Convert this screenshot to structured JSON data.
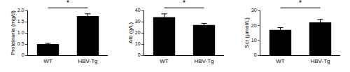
{
  "chart_data": [
    {
      "type": "bar",
      "y_label": "Proteinuria (mg/d)",
      "categories": [
        "WT",
        "HBV-Tg"
      ],
      "values": [
        0.5,
        1.75
      ],
      "errors": [
        0.03,
        0.1
      ],
      "color": "#000000",
      "ylim": [
        0,
        2
      ],
      "yticks": [
        0,
        0.5,
        {
          "value": 1,
          "label": "1.0"
        },
        1.5,
        {
          "value": 2,
          "label": "2.0"
        }
      ],
      "grid": false,
      "annotations": [
        {
          "text": "*",
          "between": [
            "WT",
            "HBV-Tg"
          ]
        }
      ]
    },
    {
      "type": "bar",
      "y_label": "Alb (g/L)",
      "categories": [
        "WT",
        "HBV-Tg"
      ],
      "values": [
        34,
        27
      ],
      "errors": [
        3,
        1.5
      ],
      "color": "#000000",
      "ylim": [
        0,
        40
      ],
      "yticks": [
        0,
        10,
        20,
        30,
        40
      ],
      "grid": false,
      "annotations": [
        {
          "text": "*",
          "between": [
            "WT",
            "HBV-Tg"
          ]
        }
      ]
    },
    {
      "type": "bar",
      "y_label": "Scr (μmol/L)",
      "categories": [
        "WT",
        "HBV-Tg"
      ],
      "values": [
        17,
        22
      ],
      "errors": [
        1.5,
        2
      ],
      "color": "#000000",
      "ylim": [
        0,
        30
      ],
      "yticks": [
        0,
        10,
        20,
        30
      ],
      "grid": false,
      "annotations": [
        {
          "text": "*",
          "between": [
            "WT",
            "HBV-Tg"
          ]
        }
      ]
    }
  ]
}
